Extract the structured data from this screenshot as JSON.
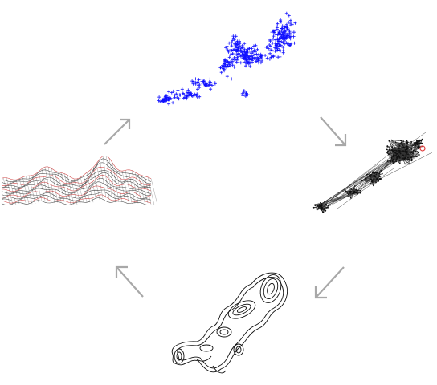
{
  "diagram": {
    "type": "cycle",
    "direction": "clockwise",
    "stages": [
      {
        "id": "point-cloud",
        "icon": "scatter-plot-icon",
        "marker": "+",
        "color": "#1010ff"
      },
      {
        "id": "graph",
        "icon": "network-graph-icon",
        "highlight_color": "#e04040"
      },
      {
        "id": "contours",
        "icon": "contour-map-icon"
      },
      {
        "id": "surface",
        "icon": "surface-mesh-icon",
        "colors": [
          "#222222",
          "#cc2222"
        ]
      }
    ],
    "arrow_color": "#a8a8a8"
  }
}
